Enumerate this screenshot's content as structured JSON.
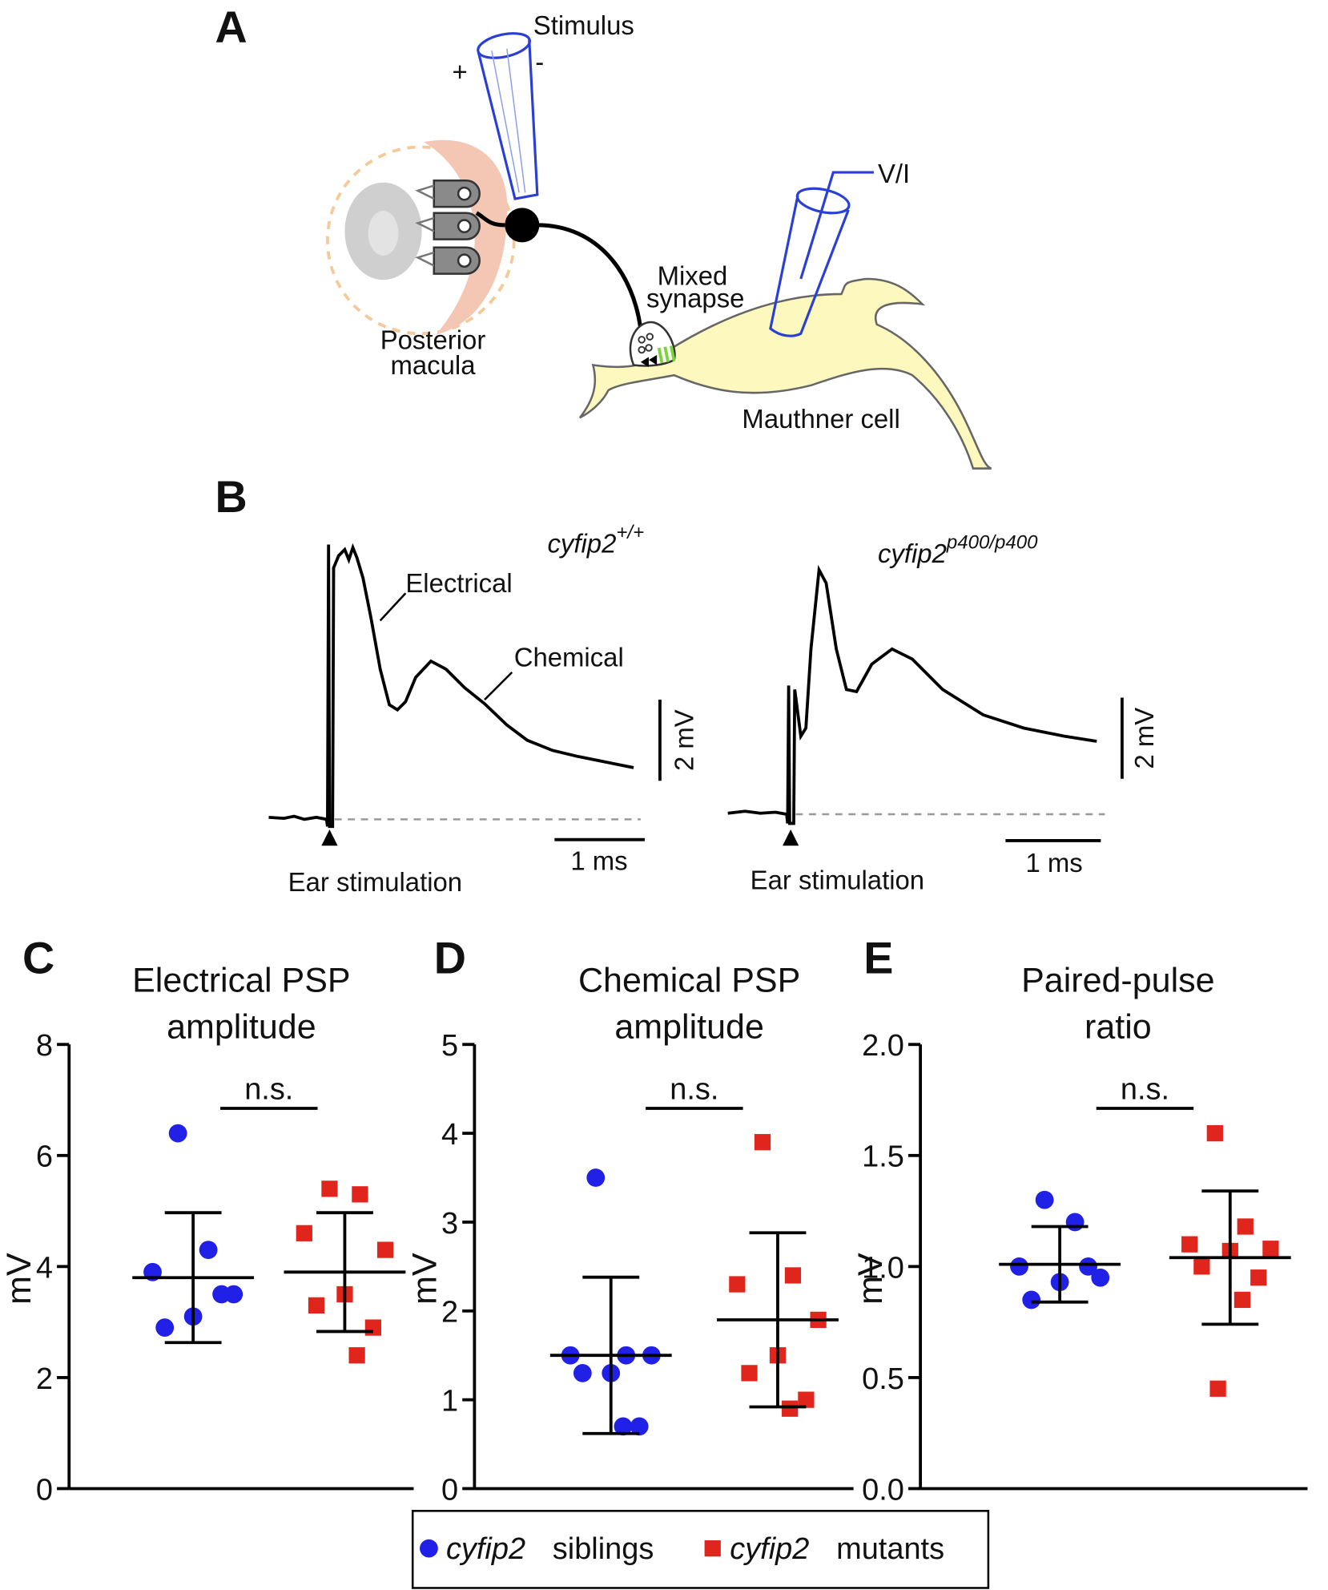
{
  "panels": {
    "a": "A",
    "b": "B",
    "c": "C",
    "d": "D",
    "e": "E"
  },
  "diagram": {
    "stimulus": "Stimulus",
    "plus": "+",
    "minus": "-",
    "vi": "V/I",
    "macula": [
      "Posterior",
      "macula"
    ],
    "synapse": [
      "Mixed",
      "synapse"
    ],
    "mauthner": "Mauthner cell"
  },
  "traces": [
    {
      "gene": "cyfip2",
      "allele": "+/+",
      "electrical": "Electrical",
      "chemical": "Chemical",
      "stim": "Ear stimulation",
      "vscale": "2 mV",
      "hscale": "1 ms"
    },
    {
      "gene": "cyfip2",
      "allele": "p400/p400",
      "stim": "Ear stimulation",
      "vscale": "2 mV",
      "hscale": "1 ms"
    }
  ],
  "legend": [
    {
      "gene": "cyfip2",
      "label": "siblings"
    },
    {
      "gene": "cyfip2",
      "label": "mutants"
    }
  ],
  "chart_data": [
    {
      "type": "scatter",
      "title": [
        "Electrical PSP",
        "amplitude"
      ],
      "ylabel": "mV",
      "annotation": "n.s.",
      "ylim": [
        0,
        8
      ],
      "yticks": [
        0,
        2,
        4,
        6,
        8
      ],
      "series": [
        {
          "color": "#2020e6",
          "marker": "circle",
          "values": [
            6.4,
            4.3,
            3.9,
            3.5,
            3.1,
            2.9,
            3.5
          ],
          "mean": 3.8,
          "sd": 1.17
        },
        {
          "color": "#e0251c",
          "marker": "square",
          "values": [
            5.4,
            5.3,
            4.6,
            4.3,
            3.5,
            3.3,
            2.9,
            2.4
          ],
          "mean": 3.9,
          "sd": 1.07
        }
      ]
    },
    {
      "type": "scatter",
      "title": [
        "Chemical PSP",
        "amplitude"
      ],
      "ylabel": "mV",
      "annotation": "n.s.",
      "ylim": [
        0,
        5
      ],
      "yticks": [
        0,
        1,
        2,
        3,
        4,
        5
      ],
      "series": [
        {
          "color": "#2020e6",
          "marker": "circle",
          "values": [
            3.5,
            1.5,
            1.5,
            1.5,
            1.3,
            1.3,
            0.7,
            0.7
          ],
          "mean": 1.5,
          "sd": 0.88
        },
        {
          "color": "#e0251c",
          "marker": "square",
          "values": [
            3.9,
            2.4,
            2.3,
            1.9,
            1.5,
            1.3,
            1.0,
            0.9
          ],
          "mean": 1.9,
          "sd": 0.98
        }
      ]
    },
    {
      "type": "scatter",
      "title": [
        "Paired-pulse",
        "ratio"
      ],
      "ylabel": "mV",
      "annotation": "n.s.",
      "ylim": [
        0,
        2
      ],
      "yticks": [
        {
          "value": 0,
          "label": "0.0"
        },
        0.5,
        {
          "value": 1,
          "label": "1.0"
        },
        1.5,
        {
          "value": 2,
          "label": "2.0"
        }
      ],
      "series": [
        {
          "color": "#2020e6",
          "marker": "circle",
          "values": [
            1.3,
            1.2,
            1.0,
            0.95,
            0.93,
            0.85,
            1.0
          ],
          "mean": 1.01,
          "sd": 0.17
        },
        {
          "color": "#e0251c",
          "marker": "square",
          "values": [
            1.6,
            1.18,
            1.1,
            1.08,
            1.07,
            1.0,
            0.95,
            0.85,
            0.45
          ],
          "mean": 1.04,
          "sd": 0.3
        }
      ]
    }
  ]
}
